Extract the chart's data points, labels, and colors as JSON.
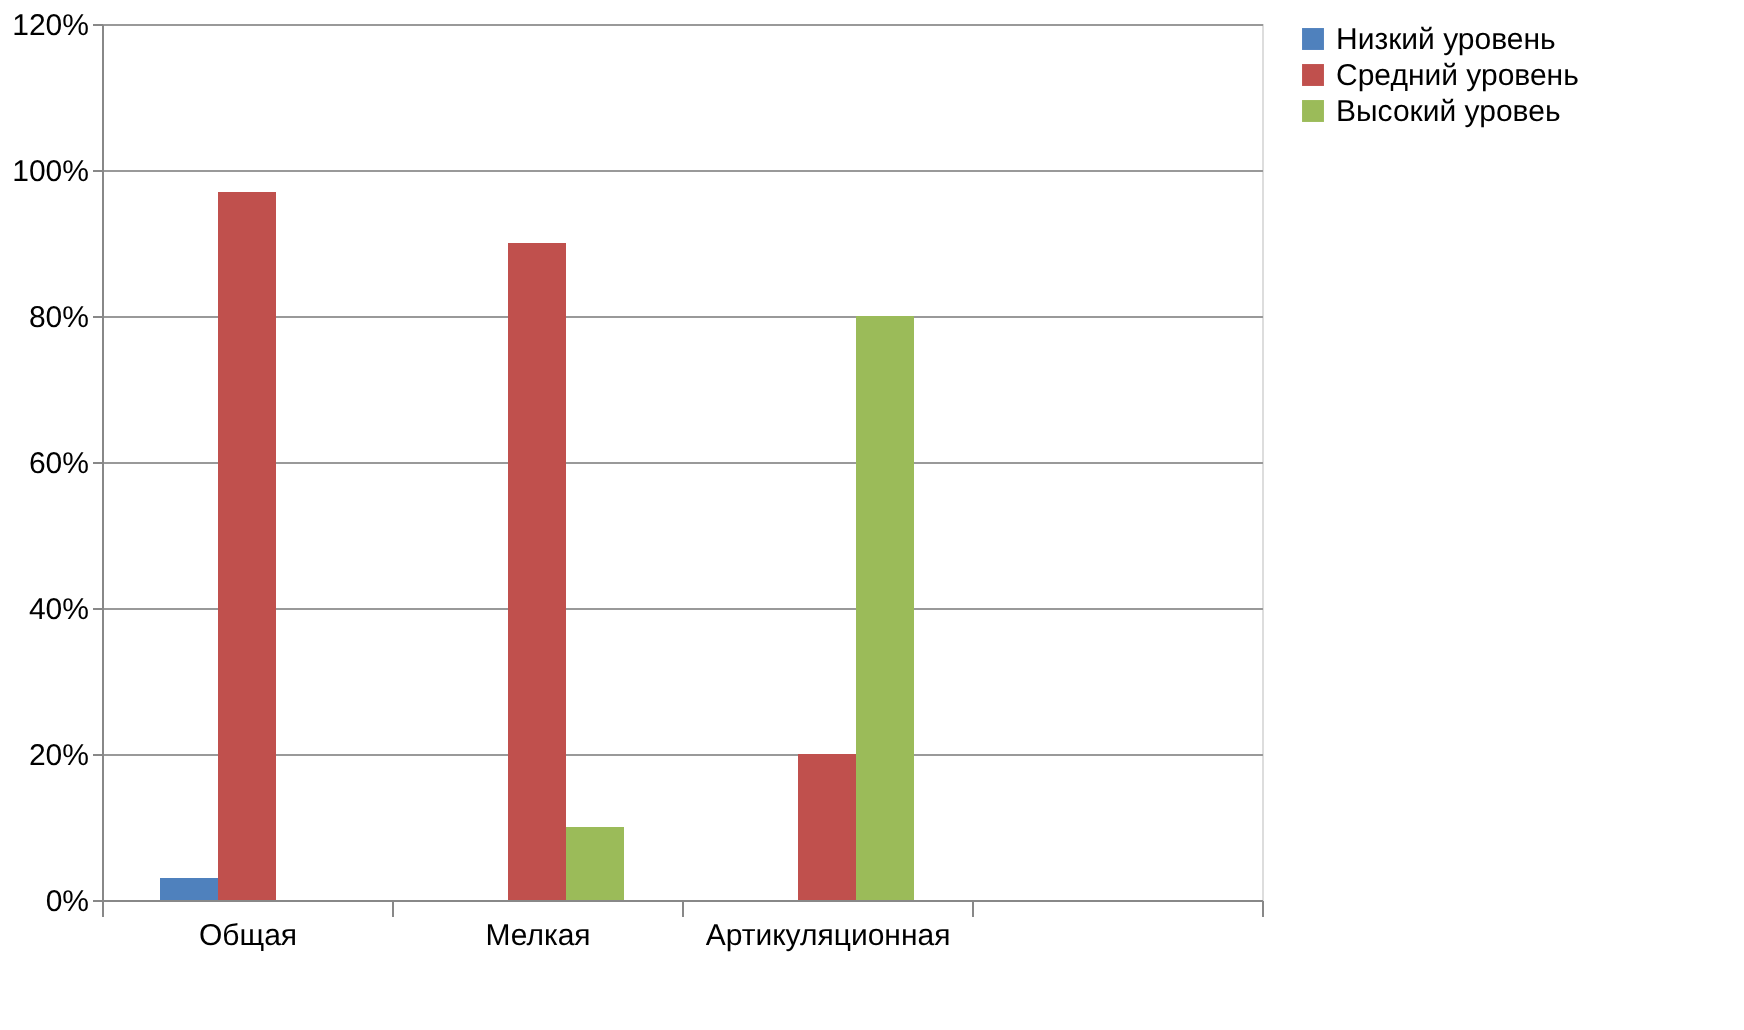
{
  "chart_data": {
    "type": "bar",
    "categories": [
      "Общая",
      "Мелкая",
      "Артикуляционная",
      null
    ],
    "series": [
      {
        "name": "Низкий уровень",
        "color": "#4f81bd",
        "values": [
          3,
          0,
          0,
          null
        ]
      },
      {
        "name": "Средний уровень",
        "color": "#c0504d",
        "values": [
          97,
          90,
          20,
          null
        ]
      },
      {
        "name": "Высокий уровеь",
        "color": "#9bbb59",
        "values": [
          0,
          10,
          80,
          null
        ]
      }
    ],
    "ylim": [
      0,
      120
    ],
    "yticks": [
      {
        "value": 0,
        "label": "0%"
      },
      {
        "value": 20,
        "label": "20%"
      },
      {
        "value": 40,
        "label": "40%"
      },
      {
        "value": 60,
        "label": "60%"
      },
      {
        "value": 80,
        "label": "80%"
      },
      {
        "value": 100,
        "label": "100%"
      },
      {
        "value": 120,
        "label": "120%"
      }
    ],
    "grid": "y",
    "legend": "right"
  }
}
